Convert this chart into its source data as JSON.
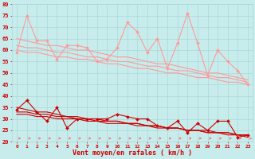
{
  "xlabel": "Vent moyen/en rafales ( km/h )",
  "x": [
    0,
    1,
    2,
    3,
    4,
    5,
    6,
    7,
    8,
    9,
    10,
    11,
    12,
    13,
    14,
    15,
    16,
    17,
    18,
    19,
    20,
    21,
    22,
    23
  ],
  "series_light_jagged": [
    [
      59,
      75,
      64,
      64,
      56,
      62,
      62,
      61,
      55,
      56,
      61,
      72,
      68,
      59,
      65,
      52,
      63,
      76,
      63,
      49,
      60,
      55,
      51,
      45
    ]
  ],
  "series_light_trend": [
    [
      65,
      64,
      63,
      62,
      62,
      61,
      60,
      60,
      59,
      58,
      57,
      57,
      56,
      55,
      54,
      54,
      53,
      52,
      51,
      50,
      50,
      49,
      48,
      47
    ],
    [
      62,
      61,
      61,
      60,
      59,
      59,
      58,
      57,
      57,
      56,
      55,
      55,
      54,
      53,
      53,
      52,
      51,
      51,
      50,
      49,
      48,
      48,
      47,
      46
    ],
    [
      60,
      59,
      59,
      58,
      57,
      57,
      56,
      56,
      55,
      54,
      54,
      53,
      52,
      52,
      51,
      50,
      50,
      49,
      48,
      48,
      47,
      46,
      46,
      45
    ]
  ],
  "series_dark_jagged": [
    [
      34,
      38,
      33,
      29,
      35,
      26,
      30,
      30,
      30,
      30,
      32,
      31,
      30,
      30,
      27,
      26,
      29,
      24,
      28,
      25,
      29,
      29,
      22,
      23
    ]
  ],
  "series_dark_trend": [
    [
      35,
      34,
      33,
      33,
      32,
      31,
      31,
      30,
      30,
      29,
      29,
      28,
      28,
      27,
      27,
      26,
      26,
      25,
      25,
      24,
      24,
      23,
      23,
      22
    ],
    [
      33,
      33,
      32,
      32,
      31,
      31,
      30,
      30,
      29,
      29,
      29,
      28,
      28,
      27,
      27,
      26,
      26,
      25,
      25,
      25,
      24,
      24,
      23,
      23
    ],
    [
      32,
      32,
      31,
      31,
      30,
      30,
      30,
      29,
      29,
      28,
      28,
      28,
      27,
      27,
      26,
      26,
      26,
      25,
      25,
      24,
      24,
      24,
      23,
      23
    ]
  ],
  "ylim": [
    20,
    80
  ],
  "yticks": [
    20,
    25,
    30,
    35,
    40,
    45,
    50,
    55,
    60,
    65,
    70,
    75,
    80
  ],
  "light_color": "#ff9999",
  "dark_color": "#cc0000",
  "arrow_color": "#ff6666",
  "bg_color": "#c8ecec",
  "grid_color": "#a8d8d8",
  "axis_color": "#cc0000",
  "tick_color": "#cc0000",
  "marker": "D",
  "markersize": 2.0,
  "linewidth_jagged": 0.8,
  "linewidth_trend": 0.8
}
